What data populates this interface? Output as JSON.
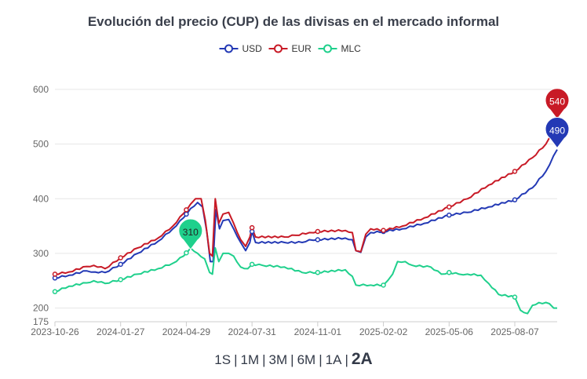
{
  "chart_data": {
    "type": "line",
    "title": "Evolución del precio (CUP) de las divisas en el mercado informal",
    "x_ticks": [
      "2023-10-26",
      "2024-01-27",
      "2024-04-29",
      "2024-07-31",
      "2024-11-01",
      "2025-02-02",
      "2025-05-06",
      "2025-08-07"
    ],
    "x_range": [
      "2023-10-26",
      "2025-10-06"
    ],
    "y_ticks": [
      175,
      200,
      300,
      400,
      500,
      600
    ],
    "ylim": [
      175,
      620
    ],
    "grid": true,
    "legend_position": "top-center",
    "series": [
      {
        "name": "USD",
        "color": "#2339b5",
        "last_label": "490",
        "points": [
          [
            "2023-10-26",
            255
          ],
          [
            "2023-11-15",
            260
          ],
          [
            "2023-12-10",
            268
          ],
          [
            "2023-12-22",
            266
          ],
          [
            "2024-01-05",
            265
          ],
          [
            "2024-01-27",
            280
          ],
          [
            "2024-02-20",
            300
          ],
          [
            "2024-03-20",
            322
          ],
          [
            "2024-04-10",
            345
          ],
          [
            "2024-04-25",
            365
          ],
          [
            "2024-05-05",
            382
          ],
          [
            "2024-05-15",
            393
          ],
          [
            "2024-05-22",
            385
          ],
          [
            "2024-05-28",
            340
          ],
          [
            "2024-06-02",
            285
          ],
          [
            "2024-06-06",
            285
          ],
          [
            "2024-06-10",
            380
          ],
          [
            "2024-06-15",
            345
          ],
          [
            "2024-06-20",
            360
          ],
          [
            "2024-06-28",
            362
          ],
          [
            "2024-07-05",
            345
          ],
          [
            "2024-07-15",
            320
          ],
          [
            "2024-07-22",
            305
          ],
          [
            "2024-07-28",
            320
          ],
          [
            "2024-07-31",
            340
          ],
          [
            "2024-08-05",
            320
          ],
          [
            "2024-09-15",
            320
          ],
          [
            "2024-10-10",
            320
          ],
          [
            "2024-10-20",
            325
          ],
          [
            "2024-11-01",
            325
          ],
          [
            "2024-12-10",
            328
          ],
          [
            "2024-12-20",
            325
          ],
          [
            "2024-12-25",
            305
          ],
          [
            "2025-01-01",
            302
          ],
          [
            "2025-01-08",
            330
          ],
          [
            "2025-01-15",
            338
          ],
          [
            "2025-02-02",
            340
          ],
          [
            "2025-03-01",
            345
          ],
          [
            "2025-04-01",
            355
          ],
          [
            "2025-05-06",
            370
          ],
          [
            "2025-06-01",
            375
          ],
          [
            "2025-07-01",
            385
          ],
          [
            "2025-08-07",
            398
          ],
          [
            "2025-09-01",
            420
          ],
          [
            "2025-09-20",
            450
          ],
          [
            "2025-10-06",
            490
          ]
        ]
      },
      {
        "name": "EUR",
        "color": "#c81a26",
        "last_label": "540",
        "points": [
          [
            "2023-10-26",
            262
          ],
          [
            "2023-11-15",
            266
          ],
          [
            "2023-12-10",
            276
          ],
          [
            "2023-12-20",
            278
          ],
          [
            "2024-01-05",
            272
          ],
          [
            "2024-01-27",
            292
          ],
          [
            "2024-02-20",
            310
          ],
          [
            "2024-03-20",
            328
          ],
          [
            "2024-04-10",
            350
          ],
          [
            "2024-04-25",
            373
          ],
          [
            "2024-05-05",
            390
          ],
          [
            "2024-05-12",
            400
          ],
          [
            "2024-05-20",
            400
          ],
          [
            "2024-05-26",
            360
          ],
          [
            "2024-06-01",
            300
          ],
          [
            "2024-06-05",
            295
          ],
          [
            "2024-06-09",
            400
          ],
          [
            "2024-06-14",
            355
          ],
          [
            "2024-06-20",
            372
          ],
          [
            "2024-06-28",
            375
          ],
          [
            "2024-07-05",
            355
          ],
          [
            "2024-07-15",
            325
          ],
          [
            "2024-07-22",
            313
          ],
          [
            "2024-07-28",
            330
          ],
          [
            "2024-07-31",
            347
          ],
          [
            "2024-08-05",
            330
          ],
          [
            "2024-09-15",
            330
          ],
          [
            "2024-10-01",
            333
          ],
          [
            "2024-10-20",
            338
          ],
          [
            "2024-11-01",
            340
          ],
          [
            "2024-12-10",
            342
          ],
          [
            "2024-12-20",
            338
          ],
          [
            "2024-12-25",
            305
          ],
          [
            "2025-01-01",
            303
          ],
          [
            "2025-01-08",
            335
          ],
          [
            "2025-01-15",
            345
          ],
          [
            "2025-02-02",
            342
          ],
          [
            "2025-03-01",
            350
          ],
          [
            "2025-04-01",
            365
          ],
          [
            "2025-05-06",
            385
          ],
          [
            "2025-06-01",
            400
          ],
          [
            "2025-07-01",
            425
          ],
          [
            "2025-08-07",
            450
          ],
          [
            "2025-09-01",
            475
          ],
          [
            "2025-09-20",
            500
          ],
          [
            "2025-10-06",
            540
          ]
        ]
      },
      {
        "name": "MLC",
        "color": "#1fd08c",
        "last_label": "310",
        "peak_date": "2024-05-05",
        "points": [
          [
            "2023-10-26",
            230
          ],
          [
            "2023-11-15",
            240
          ],
          [
            "2023-12-10",
            246
          ],
          [
            "2023-12-20",
            250
          ],
          [
            "2024-01-05",
            245
          ],
          [
            "2024-01-27",
            252
          ],
          [
            "2024-02-20",
            262
          ],
          [
            "2024-03-20",
            272
          ],
          [
            "2024-04-10",
            282
          ],
          [
            "2024-04-25",
            295
          ],
          [
            "2024-05-05",
            310
          ],
          [
            "2024-05-15",
            300
          ],
          [
            "2024-05-25",
            290
          ],
          [
            "2024-06-01",
            265
          ],
          [
            "2024-06-05",
            262
          ],
          [
            "2024-06-09",
            310
          ],
          [
            "2024-06-14",
            285
          ],
          [
            "2024-06-20",
            300
          ],
          [
            "2024-06-28",
            300
          ],
          [
            "2024-07-05",
            295
          ],
          [
            "2024-07-15",
            275
          ],
          [
            "2024-07-25",
            272
          ],
          [
            "2024-07-31",
            280
          ],
          [
            "2024-08-15",
            278
          ],
          [
            "2024-09-15",
            275
          ],
          [
            "2024-10-10",
            265
          ],
          [
            "2024-11-01",
            265
          ],
          [
            "2024-12-10",
            270
          ],
          [
            "2024-12-20",
            258
          ],
          [
            "2024-12-25",
            242
          ],
          [
            "2025-01-15",
            242
          ],
          [
            "2025-02-02",
            242
          ],
          [
            "2025-02-15",
            262
          ],
          [
            "2025-02-22",
            285
          ],
          [
            "2025-03-05",
            285
          ],
          [
            "2025-03-15",
            278
          ],
          [
            "2025-04-10",
            275
          ],
          [
            "2025-04-25",
            262
          ],
          [
            "2025-05-06",
            265
          ],
          [
            "2025-05-20",
            262
          ],
          [
            "2025-06-01",
            262
          ],
          [
            "2025-06-20",
            260
          ],
          [
            "2025-07-01",
            245
          ],
          [
            "2025-07-15",
            225
          ],
          [
            "2025-08-07",
            220
          ],
          [
            "2025-08-15",
            196
          ],
          [
            "2025-08-25",
            190
          ],
          [
            "2025-09-01",
            205
          ],
          [
            "2025-09-10",
            210
          ],
          [
            "2025-09-25",
            208
          ],
          [
            "2025-10-01",
            200
          ],
          [
            "2025-10-06",
            200
          ]
        ]
      }
    ]
  },
  "range_selector": {
    "options": [
      "1S",
      "1M",
      "3M",
      "6M",
      "1A",
      "2A"
    ],
    "active": "2A"
  }
}
